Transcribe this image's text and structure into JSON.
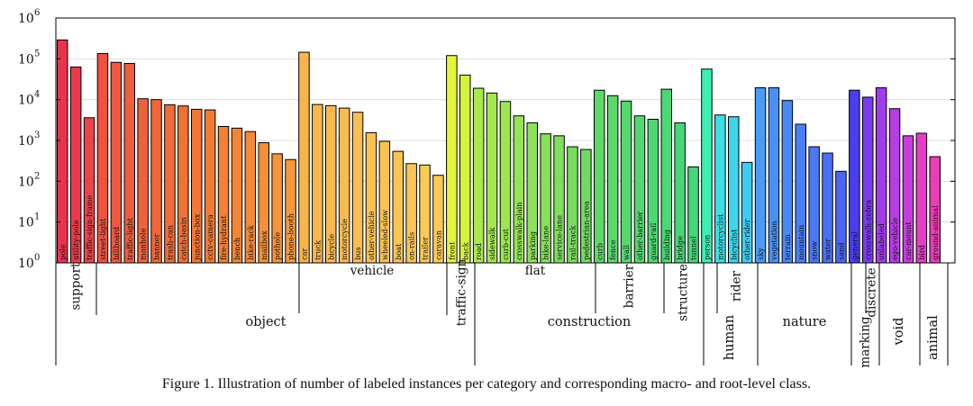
{
  "chart_data": {
    "type": "bar",
    "y_scale": "log",
    "ylim": [
      1,
      1000000
    ],
    "yticks": [
      {
        "base": "10",
        "exp": "0",
        "value": 1
      },
      {
        "base": "10",
        "exp": "1",
        "value": 10
      },
      {
        "base": "10",
        "exp": "2",
        "value": 100
      },
      {
        "base": "10",
        "exp": "3",
        "value": 1000
      },
      {
        "base": "10",
        "exp": "4",
        "value": 10000
      },
      {
        "base": "10",
        "exp": "5",
        "value": 100000
      },
      {
        "base": "10",
        "exp": "6",
        "value": 1000000
      }
    ],
    "grid": "horizontal-decades",
    "categories": [
      {
        "label": "pole",
        "value": 290000,
        "color": "#e8334f"
      },
      {
        "label": "utility-pole",
        "value": 63000,
        "color": "#ea3a4b"
      },
      {
        "label": "traffic-sign-frame",
        "value": 3600,
        "color": "#ec4347"
      },
      {
        "label": "street-light",
        "value": 135000,
        "color": "#ee5340"
      },
      {
        "label": "billboard",
        "value": 82000,
        "color": "#ef583d"
      },
      {
        "label": "traffic-light",
        "value": 77000,
        "color": "#f05d3b"
      },
      {
        "label": "manhole",
        "value": 10500,
        "color": "#f06239"
      },
      {
        "label": "banner",
        "value": 10000,
        "color": "#f16737"
      },
      {
        "label": "trash-can",
        "value": 7500,
        "color": "#f16c36"
      },
      {
        "label": "catch-basin",
        "value": 7000,
        "color": "#f27135"
      },
      {
        "label": "junction-box",
        "value": 5800,
        "color": "#f27634"
      },
      {
        "label": "cctv-camera",
        "value": 5600,
        "color": "#f37b34"
      },
      {
        "label": "fire-hydrant",
        "value": 2200,
        "color": "#f38034"
      },
      {
        "label": "bench",
        "value": 2000,
        "color": "#f48535"
      },
      {
        "label": "bike-rack",
        "value": 1650,
        "color": "#f48a36"
      },
      {
        "label": "mailbox",
        "value": 880,
        "color": "#f58f38"
      },
      {
        "label": "pothole",
        "value": 470,
        "color": "#f5943a"
      },
      {
        "label": "phone-booth",
        "value": 340,
        "color": "#f6993c"
      },
      {
        "label": "car",
        "value": 145000,
        "color": "#f9b44c"
      },
      {
        "label": "truck",
        "value": 7600,
        "color": "#f9b74d"
      },
      {
        "label": "bicycle",
        "value": 7100,
        "color": "#fab94e"
      },
      {
        "label": "motorcycle",
        "value": 6200,
        "color": "#fabb4f"
      },
      {
        "label": "bus",
        "value": 4900,
        "color": "#fabd50"
      },
      {
        "label": "other-vehicle",
        "value": 1550,
        "color": "#fac051"
      },
      {
        "label": "wheeled-slow",
        "value": 950,
        "color": "#fbc252"
      },
      {
        "label": "boat",
        "value": 540,
        "color": "#fbc453"
      },
      {
        "label": "on-rails",
        "value": 270,
        "color": "#fbc654"
      },
      {
        "label": "trailer",
        "value": 250,
        "color": "#fbc955"
      },
      {
        "label": "caravan",
        "value": 140,
        "color": "#fccb56"
      },
      {
        "label": "front",
        "value": 120000,
        "color": "#e4f53a"
      },
      {
        "label": "back",
        "value": 40000,
        "color": "#d4f23e"
      },
      {
        "label": "road",
        "value": 19000,
        "color": "#a9ea4b"
      },
      {
        "label": "sidewalk",
        "value": 14500,
        "color": "#a2e84e"
      },
      {
        "label": "curb-cut",
        "value": 9000,
        "color": "#9be651"
      },
      {
        "label": "crosswalk-plain",
        "value": 4000,
        "color": "#94e454"
      },
      {
        "label": "parking",
        "value": 2700,
        "color": "#8de257"
      },
      {
        "label": "bike-lane",
        "value": 1450,
        "color": "#86e05a"
      },
      {
        "label": "service-lane",
        "value": 1300,
        "color": "#7fde5d"
      },
      {
        "label": "rail-track",
        "value": 700,
        "color": "#78dc60"
      },
      {
        "label": "pedestrian-area",
        "value": 600,
        "color": "#71da63"
      },
      {
        "label": "curb",
        "value": 17000,
        "color": "#5fd86a"
      },
      {
        "label": "fence",
        "value": 12500,
        "color": "#5ad86c"
      },
      {
        "label": "wall",
        "value": 9200,
        "color": "#56d86e"
      },
      {
        "label": "other-barrier",
        "value": 4000,
        "color": "#52d870"
      },
      {
        "label": "guard-rail",
        "value": 3300,
        "color": "#4ed872"
      },
      {
        "label": "building",
        "value": 18000,
        "color": "#4ad874"
      },
      {
        "label": "bridge",
        "value": 2700,
        "color": "#47d876"
      },
      {
        "label": "tunnel",
        "value": 225,
        "color": "#44d878"
      },
      {
        "label": "person",
        "value": 56000,
        "color": "#3ef0b0"
      },
      {
        "label": "motorcyclist",
        "value": 4200,
        "color": "#3ddfe6"
      },
      {
        "label": "bicyclist",
        "value": 3800,
        "color": "#3dd6ec"
      },
      {
        "label": "other-rider",
        "value": 290,
        "color": "#3dcdf0"
      },
      {
        "label": "sky",
        "value": 19500,
        "color": "#4a9af7"
      },
      {
        "label": "vegetation",
        "value": 19500,
        "color": "#4a91f7"
      },
      {
        "label": "terrain",
        "value": 9500,
        "color": "#4a88f7"
      },
      {
        "label": "mountain",
        "value": 2500,
        "color": "#4a80f7"
      },
      {
        "label": "snow",
        "value": 700,
        "color": "#4a78f7"
      },
      {
        "label": "water",
        "value": 490,
        "color": "#4a70f7"
      },
      {
        "label": "sand",
        "value": 175,
        "color": "#4a68f7"
      },
      {
        "label": "general",
        "value": 17000,
        "color": "#4a3ef0"
      },
      {
        "label": "crosswalk-zebra",
        "value": 11500,
        "color": "#7a3cf0"
      },
      {
        "label": "unlabeled",
        "value": 19500,
        "color": "#a23ceb"
      },
      {
        "label": "ego-vehicle",
        "value": 6000,
        "color": "#b83ce6"
      },
      {
        "label": "car-mount",
        "value": 1300,
        "color": "#c93ce0"
      },
      {
        "label": "bird",
        "value": 1500,
        "color": "#e63cc8"
      },
      {
        "label": "ground-animal",
        "value": 400,
        "color": "#ee3cb8"
      }
    ],
    "macro_groups": [
      {
        "label": "support",
        "start": 0,
        "end": 2
      },
      {
        "label": "vehicle",
        "start": 18,
        "end": 28
      },
      {
        "label": "traffic-sign",
        "start": 29,
        "end": 30
      },
      {
        "label": "flat",
        "start": 31,
        "end": 39
      },
      {
        "label": "barrier",
        "start": 40,
        "end": 44
      },
      {
        "label": "structure",
        "start": 45,
        "end": 47
      },
      {
        "label": "rider",
        "start": 49,
        "end": 51
      },
      {
        "label": "marking",
        "start": 59,
        "end": 60
      },
      {
        "label": "discrete",
        "start": 60,
        "end": 60
      }
    ],
    "root_groups": [
      {
        "label": "object",
        "start": 0,
        "end": 28
      },
      {
        "label": "construction",
        "start": 31,
        "end": 47
      },
      {
        "label": "human",
        "start": 48,
        "end": 51
      },
      {
        "label": "nature",
        "start": 52,
        "end": 58
      },
      {
        "label": "void",
        "start": 61,
        "end": 63
      },
      {
        "label": "animal",
        "start": 64,
        "end": 65
      }
    ]
  },
  "caption": "Figure 1. Illustration of number of labeled instances per category and corresponding macro- and root-level class."
}
